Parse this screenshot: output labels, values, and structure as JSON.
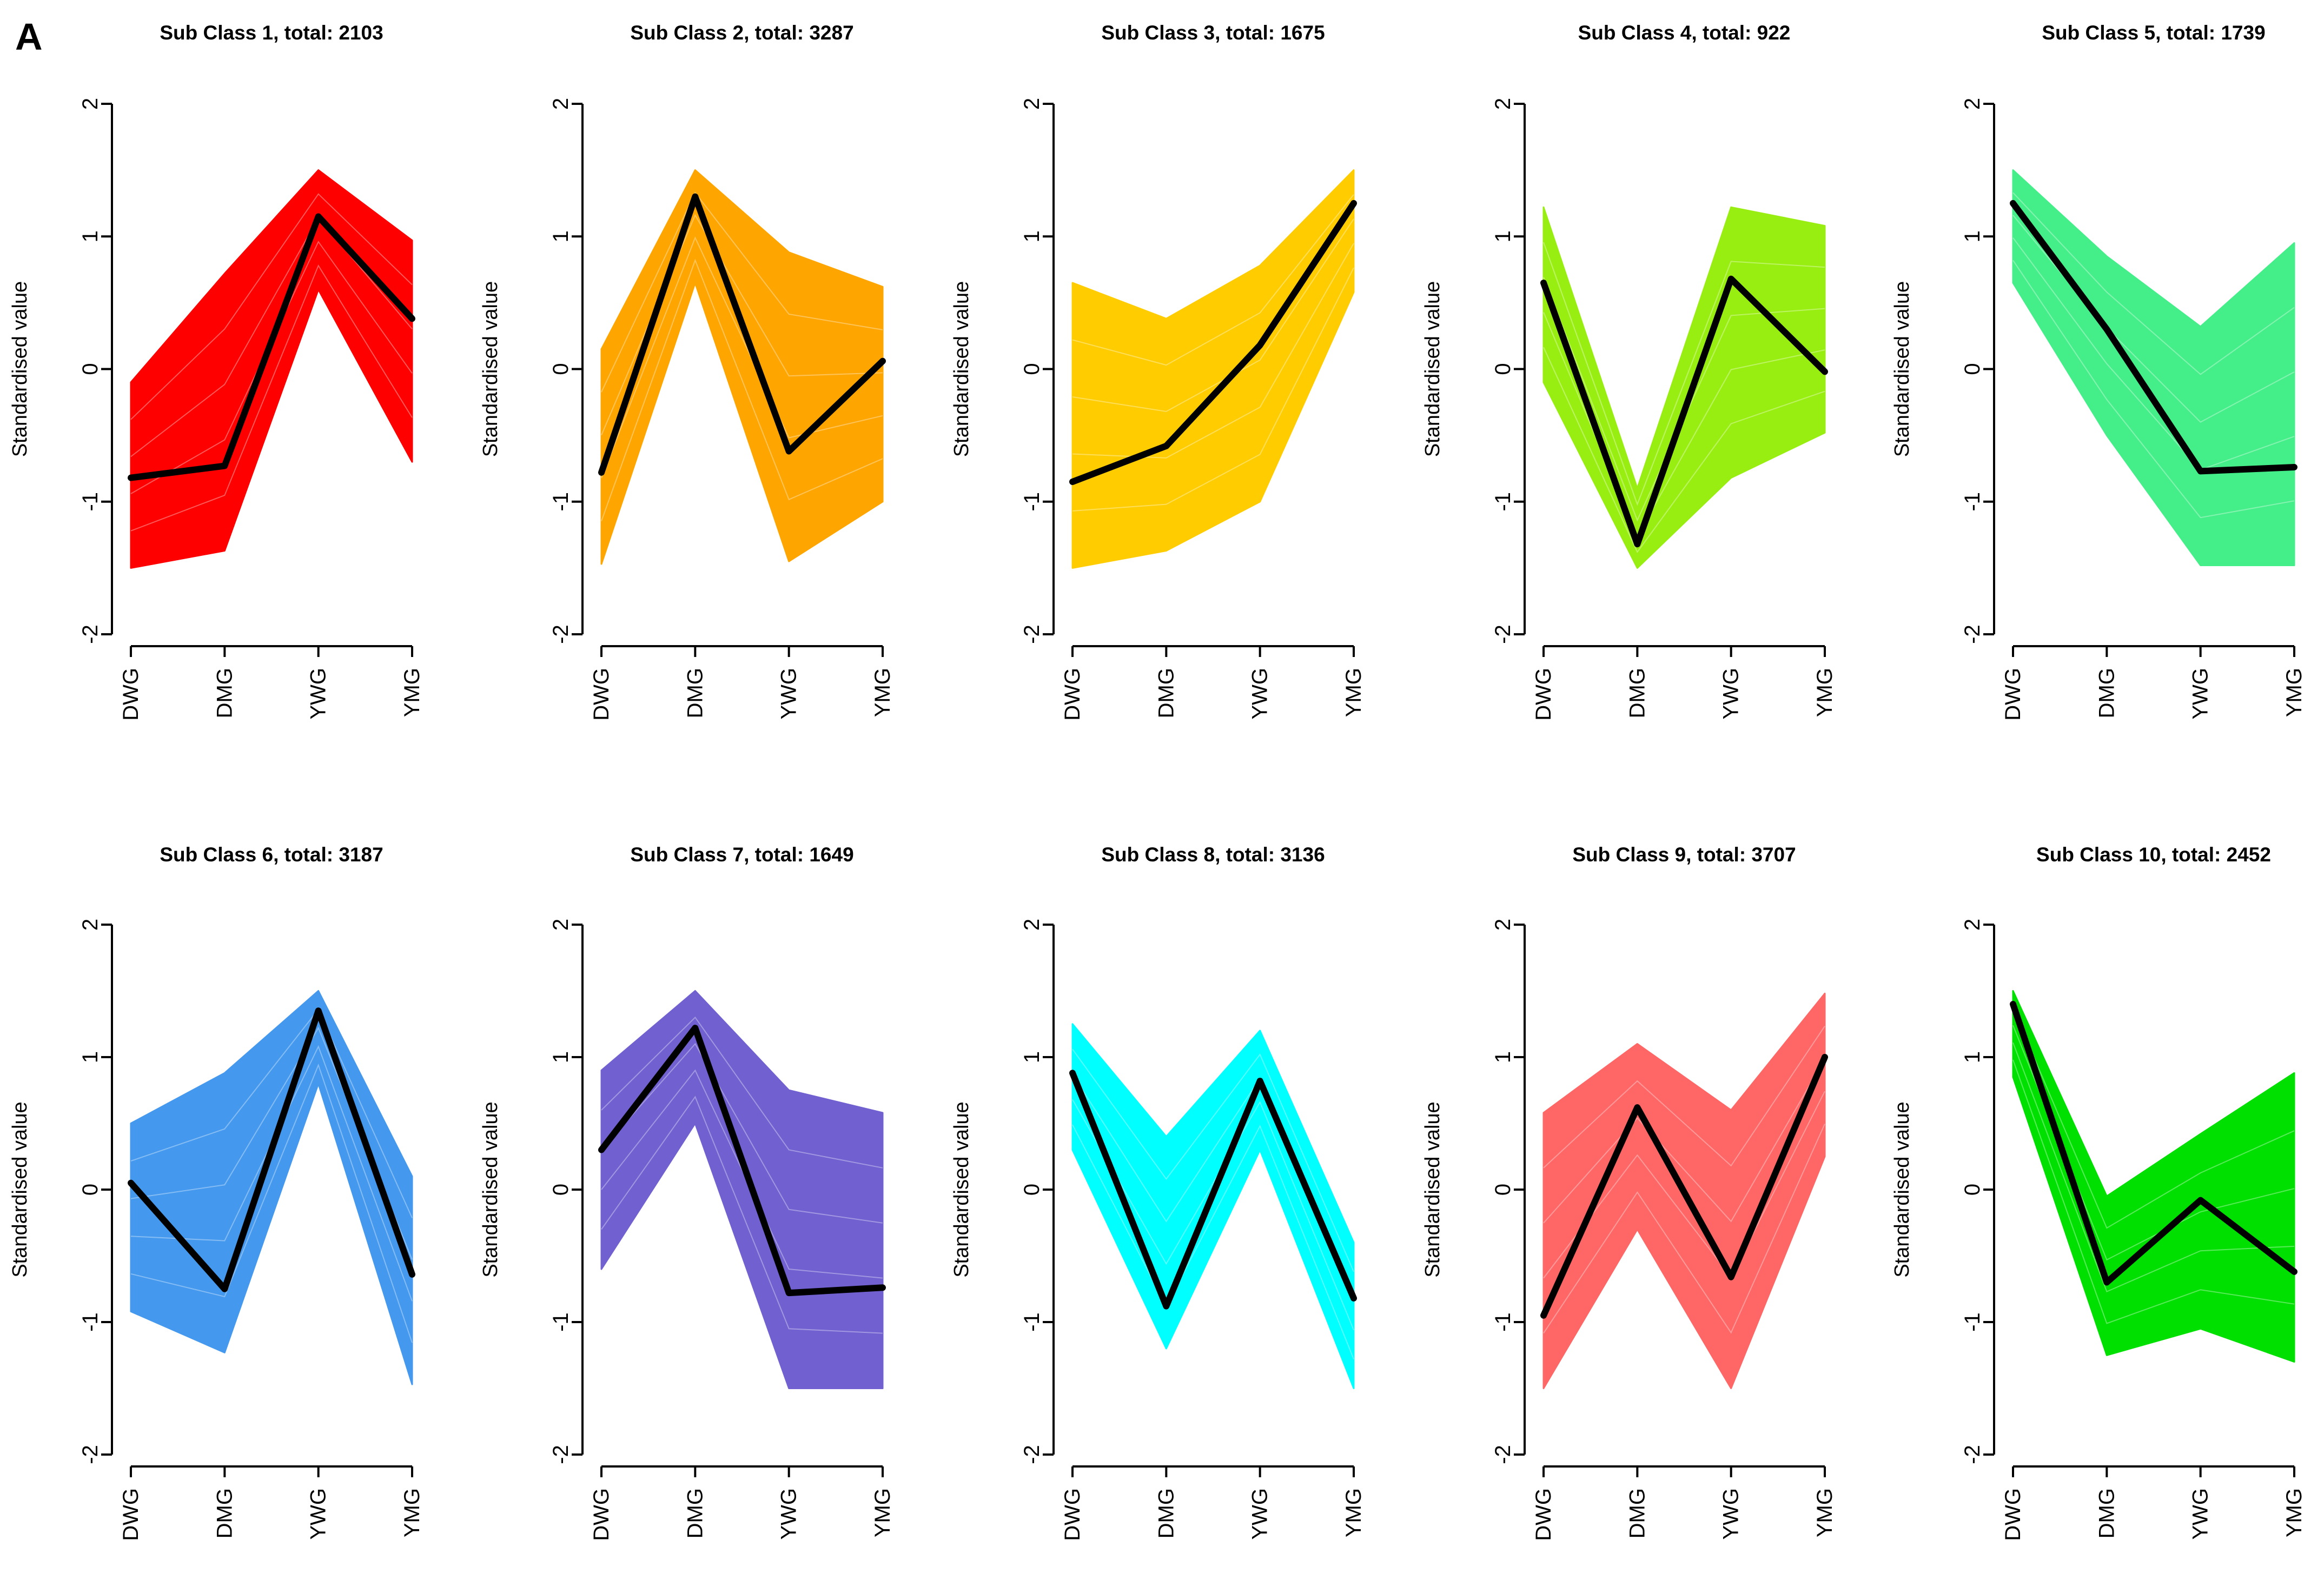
{
  "figure": {
    "panel_label": "A"
  },
  "chart_data": [
    {
      "type": "line",
      "title": "Sub Class 1, total: 2103",
      "ylabel": "Standardised value",
      "categories": [
        "DWG",
        "DMG",
        "YWG",
        "YMG"
      ],
      "ylim": [
        -2,
        2
      ],
      "yticks": [
        -2,
        -1,
        0,
        1,
        2
      ],
      "color": "#ff0000",
      "band_upper": [
        -0.1,
        0.72,
        1.5,
        0.97
      ],
      "band_lower": [
        -1.5,
        -1.37,
        0.6,
        -0.7
      ],
      "centroid": [
        -0.82,
        -0.73,
        1.15,
        0.38
      ]
    },
    {
      "type": "line",
      "title": "Sub Class 2, total: 3287",
      "ylabel": "Standardised value",
      "categories": [
        "DWG",
        "DMG",
        "YWG",
        "YMG"
      ],
      "ylim": [
        -2,
        2
      ],
      "yticks": [
        -2,
        -1,
        0,
        1,
        2
      ],
      "color": "#ffa500",
      "band_upper": [
        0.15,
        1.5,
        0.88,
        0.62
      ],
      "band_lower": [
        -1.47,
        0.65,
        -1.45,
        -1.0
      ],
      "centroid": [
        -0.78,
        1.3,
        -0.62,
        0.06
      ]
    },
    {
      "type": "line",
      "title": "Sub Class 3, total: 1675",
      "ylabel": "Standardised value",
      "categories": [
        "DWG",
        "DMG",
        "YWG",
        "YMG"
      ],
      "ylim": [
        -2,
        2
      ],
      "yticks": [
        -2,
        -1,
        0,
        1,
        2
      ],
      "color": "#ffcc00",
      "band_upper": [
        0.65,
        0.38,
        0.78,
        1.5
      ],
      "band_lower": [
        -1.5,
        -1.37,
        -1.0,
        0.58
      ],
      "centroid": [
        -0.85,
        -0.58,
        0.18,
        1.25
      ]
    },
    {
      "type": "line",
      "title": "Sub Class 4, total: 922",
      "ylabel": "Standardised value",
      "categories": [
        "DWG",
        "DMG",
        "YWG",
        "YMG"
      ],
      "ylim": [
        -2,
        2
      ],
      "yticks": [
        -2,
        -1,
        0,
        1,
        2
      ],
      "color": "#99ee11",
      "band_upper": [
        1.22,
        -0.9,
        1.22,
        1.08
      ],
      "band_lower": [
        -0.1,
        -1.5,
        -0.82,
        -0.48
      ],
      "centroid": [
        0.65,
        -1.32,
        0.68,
        -0.02
      ]
    },
    {
      "type": "line",
      "title": "Sub Class 5, total: 1739",
      "ylabel": "Standardised value",
      "categories": [
        "DWG",
        "DMG",
        "YWG",
        "YMG"
      ],
      "ylim": [
        -2,
        2
      ],
      "yticks": [
        -2,
        -1,
        0,
        1,
        2
      ],
      "color": "#44ee88",
      "band_upper": [
        1.5,
        0.85,
        0.32,
        0.95
      ],
      "band_lower": [
        0.65,
        -0.5,
        -1.48,
        -1.48
      ],
      "centroid": [
        1.25,
        0.3,
        -0.77,
        -0.74
      ]
    },
    {
      "type": "line",
      "title": "Sub Class 6, total: 3187",
      "ylabel": "Standardised value",
      "categories": [
        "DWG",
        "DMG",
        "YWG",
        "YMG"
      ],
      "ylim": [
        -2,
        2
      ],
      "yticks": [
        -2,
        -1,
        0,
        1,
        2
      ],
      "color": "#4499ee",
      "band_upper": [
        0.5,
        0.88,
        1.5,
        0.1
      ],
      "band_lower": [
        -0.92,
        -1.23,
        0.8,
        -1.47
      ],
      "centroid": [
        0.05,
        -0.75,
        1.35,
        -0.64
      ]
    },
    {
      "type": "line",
      "title": "Sub Class 7, total: 1649",
      "ylabel": "Standardised value",
      "categories": [
        "DWG",
        "DMG",
        "YWG",
        "YMG"
      ],
      "ylim": [
        -2,
        2
      ],
      "yticks": [
        -2,
        -1,
        0,
        1,
        2
      ],
      "color": "#7060d0",
      "band_upper": [
        0.9,
        1.5,
        0.75,
        0.58
      ],
      "band_lower": [
        -0.6,
        0.5,
        -1.5,
        -1.5
      ],
      "centroid": [
        0.3,
        1.22,
        -0.78,
        -0.74
      ]
    },
    {
      "type": "line",
      "title": "Sub Class 8, total: 3136",
      "ylabel": "Standardised value",
      "categories": [
        "DWG",
        "DMG",
        "YWG",
        "YMG"
      ],
      "ylim": [
        -2,
        2
      ],
      "yticks": [
        -2,
        -1,
        0,
        1,
        2
      ],
      "color": "#00ffff",
      "band_upper": [
        1.25,
        0.4,
        1.2,
        -0.4
      ],
      "band_lower": [
        0.3,
        -1.2,
        0.3,
        -1.5
      ],
      "centroid": [
        0.88,
        -0.88,
        0.82,
        -0.82
      ]
    },
    {
      "type": "line",
      "title": "Sub Class 9, total: 3707",
      "ylabel": "Standardised value",
      "categories": [
        "DWG",
        "DMG",
        "YWG",
        "YMG"
      ],
      "ylim": [
        -2,
        2
      ],
      "yticks": [
        -2,
        -1,
        0,
        1,
        2
      ],
      "color": "#ff6666",
      "band_upper": [
        0.58,
        1.1,
        0.6,
        1.48
      ],
      "band_lower": [
        -1.5,
        -0.3,
        -1.5,
        0.25
      ],
      "centroid": [
        -0.95,
        0.62,
        -0.66,
        1.0
      ]
    },
    {
      "type": "line",
      "title": "Sub Class 10, total: 2452",
      "ylabel": "Standardised value",
      "categories": [
        "DWG",
        "DMG",
        "YWG",
        "YMG"
      ],
      "ylim": [
        -2,
        2
      ],
      "yticks": [
        -2,
        -1,
        0,
        1,
        2
      ],
      "color": "#00e000",
      "band_upper": [
        1.5,
        -0.05,
        0.42,
        0.88
      ],
      "band_lower": [
        0.85,
        -1.25,
        -1.05,
        -1.3
      ],
      "centroid": [
        1.4,
        -0.7,
        -0.08,
        -0.62
      ]
    }
  ]
}
